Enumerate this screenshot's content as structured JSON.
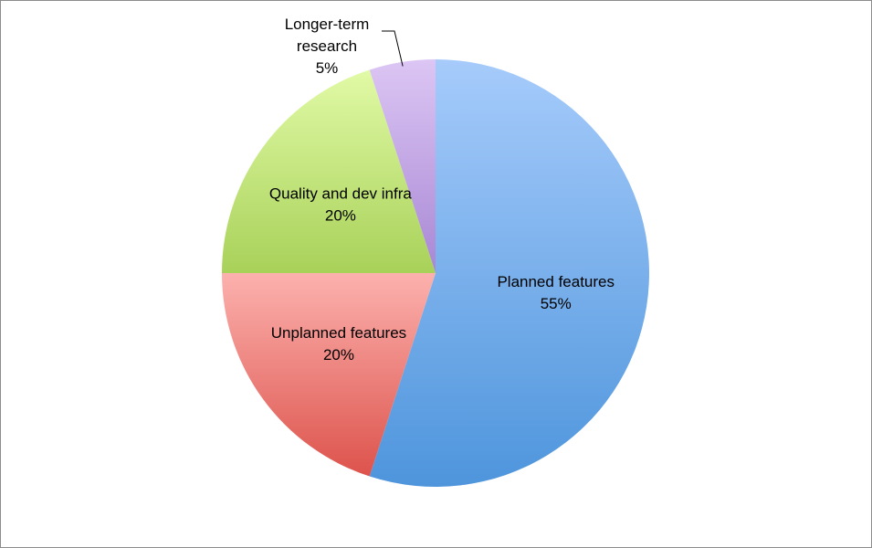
{
  "chart_data": {
    "type": "pie",
    "title": "",
    "slices": [
      {
        "label": "Planned features",
        "value": 55,
        "percent_label": "55%",
        "color_light": "#a6cbfb",
        "color_dark": "#4e95dc"
      },
      {
        "label": "Unplanned features",
        "value": 20,
        "percent_label": "20%",
        "color_light": "#fcb1ae",
        "color_dark": "#dd534c"
      },
      {
        "label": "Quality and dev infra",
        "value": 20,
        "percent_label": "20%",
        "color_light": "#e1faa6",
        "color_dark": "#a8d159"
      },
      {
        "label": "Longer-term research",
        "label_lines": [
          "Longer-term",
          "research"
        ],
        "value": 5,
        "percent_label": "5%",
        "color_light": "#dcc6f4",
        "color_dark": "#a887d4"
      }
    ],
    "start_angle": "12 o'clock",
    "direction": "clockwise",
    "legend": "none"
  }
}
